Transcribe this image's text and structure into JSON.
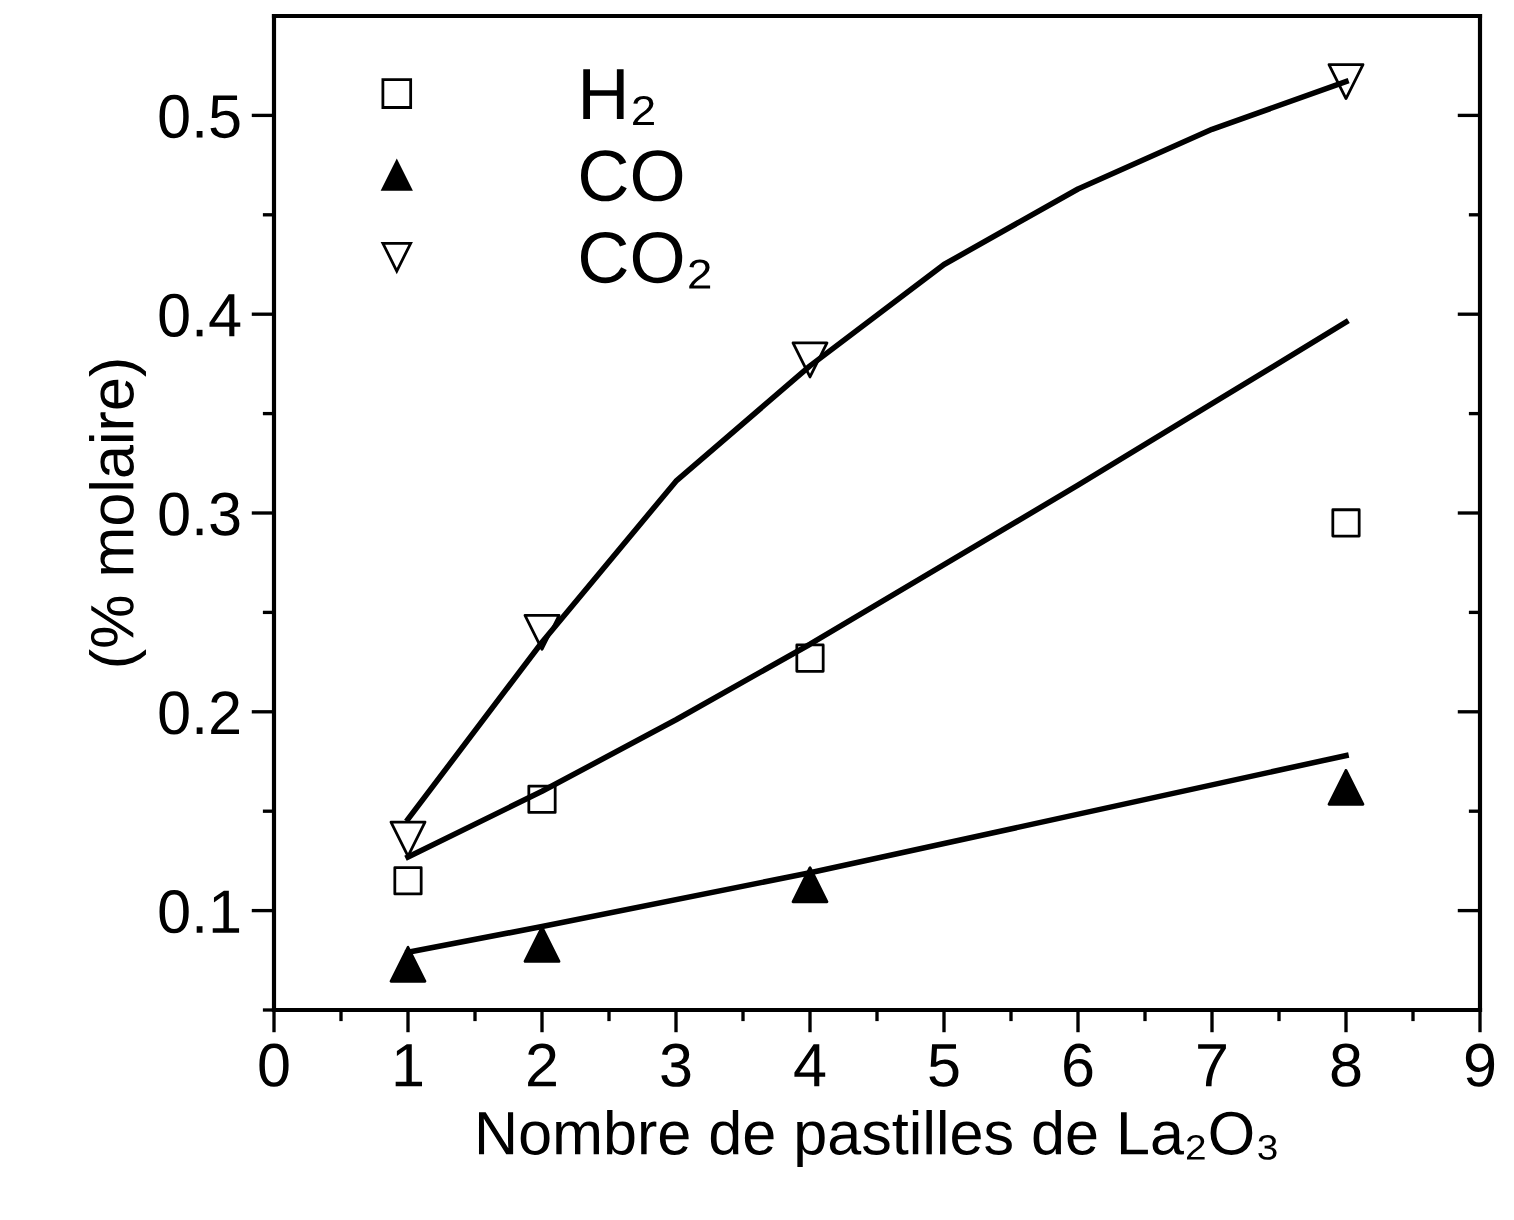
{
  "chart_data": {
    "type": "scatter",
    "xlabel": "Nombre de pastilles de La₂O₃",
    "ylabel": "(% molaire)",
    "xlim": [
      0,
      9
    ],
    "ylim": [
      0.05,
      0.55
    ],
    "xticks": [
      0,
      {
        "value": 0.5,
        "label": null
      },
      1,
      {
        "value": 1.5,
        "label": null
      },
      2,
      {
        "value": 2.5,
        "label": null
      },
      3,
      {
        "value": 3.5,
        "label": null
      },
      4,
      {
        "value": 4.5,
        "label": null
      },
      5,
      {
        "value": 5.5,
        "label": null
      },
      6,
      {
        "value": 6.5,
        "label": null
      },
      7,
      {
        "value": 7.5,
        "label": null
      },
      8,
      {
        "value": 8.5,
        "label": null
      },
      9
    ],
    "yticks": [
      {
        "value": 0.05,
        "label": null
      },
      0.1,
      {
        "value": 0.15,
        "label": null
      },
      0.2,
      {
        "value": 0.25,
        "label": null
      },
      0.3,
      {
        "value": 0.35,
        "label": null
      },
      0.4,
      {
        "value": 0.45,
        "label": null
      },
      0.5
    ],
    "grid": false,
    "legend": "top left",
    "series": [
      {
        "name": "H₂",
        "marker": "square",
        "color": "#000000",
        "x": [
          1,
          2,
          4,
          8
        ],
        "values": [
          0.115,
          0.156,
          0.227,
          0.295
        ]
      },
      {
        "name": "CO",
        "marker": "triangle",
        "color": "#000000",
        "x": [
          1,
          2,
          4,
          8
        ],
        "values": [
          0.073,
          0.083,
          0.113,
          0.162
        ]
      },
      {
        "name": "CO₂",
        "marker": "triangle_down",
        "color": "#000000",
        "x": [
          1,
          2,
          4,
          8
        ],
        "values": [
          0.136,
          0.24,
          0.377,
          0.517
        ]
      },
      {
        "type": "line",
        "color": "#000000",
        "line_style": "solid",
        "x": [
          1,
          2,
          3,
          4,
          5,
          6,
          7,
          8
        ],
        "values": [
          0.127,
          0.16,
          0.196,
          0.234,
          0.274,
          0.314,
          0.355,
          0.396
        ]
      },
      {
        "type": "line",
        "color": "#000000",
        "line_style": "solid",
        "x": [
          1,
          2,
          4,
          8
        ],
        "values": [
          0.079,
          0.092,
          0.119,
          0.178
        ]
      },
      {
        "type": "line",
        "color": "#000000",
        "line_style": "solid",
        "x": [
          1,
          2,
          3,
          4,
          5,
          6,
          7,
          8
        ],
        "values": [
          0.146,
          0.235,
          0.316,
          0.374,
          0.425,
          0.463,
          0.493,
          0.517
        ]
      }
    ]
  }
}
